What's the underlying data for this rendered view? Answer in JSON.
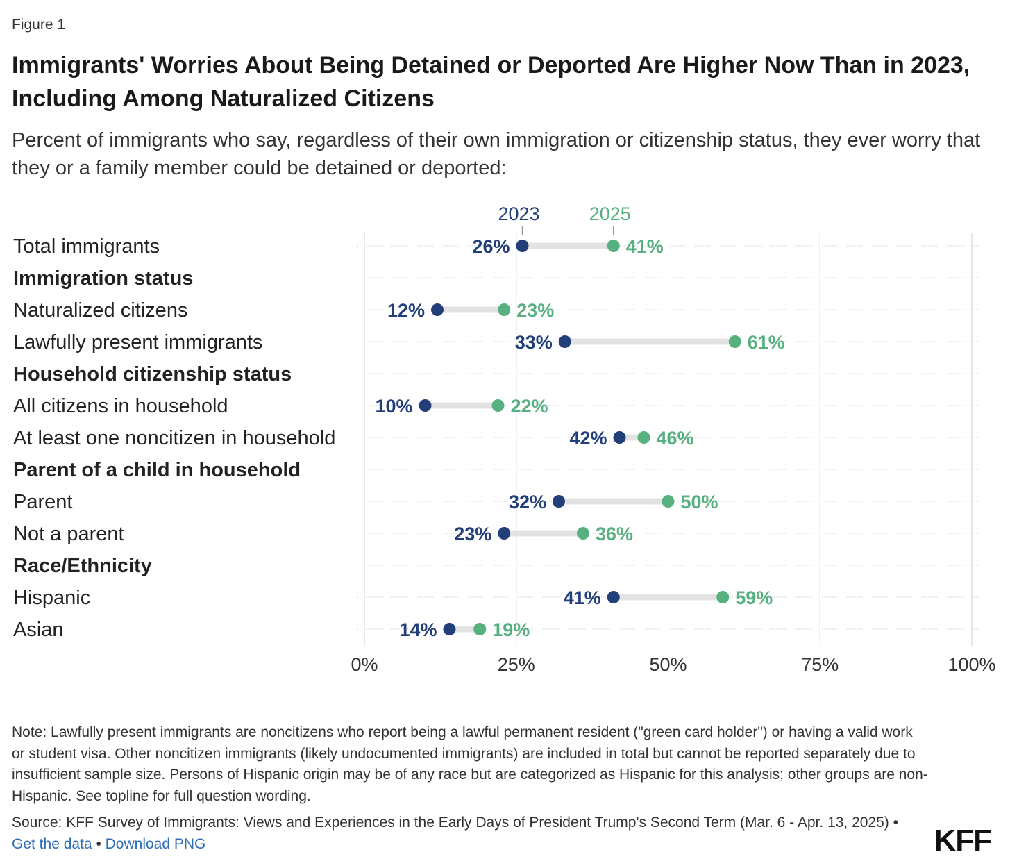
{
  "figure_label": "Figure 1",
  "title": "Immigrants' Worries About Being Detained or Deported Are Higher Now Than in 2023, Including Among Naturalized Citizens",
  "subtitle": "Percent of immigrants who say, regardless of their own immigration or citizenship status, they ever worry that they or a family member could be detained or deported:",
  "colors": {
    "series_2023": "#233f7a",
    "series_2025": "#56b07f",
    "connector": "#e3e3e3",
    "grid": "#d0d0d0"
  },
  "chart_data": {
    "type": "dumbbell",
    "xlim": [
      0,
      100
    ],
    "x_ticks": [
      "0%",
      "25%",
      "50%",
      "75%",
      "100%"
    ],
    "x_tick_values": [
      0,
      25,
      50,
      75,
      100
    ],
    "series": [
      {
        "name": "2023",
        "color": "#233f7a"
      },
      {
        "name": "2025",
        "color": "#56b07f"
      }
    ],
    "rows": [
      {
        "label": "Total immigrants",
        "header": false,
        "v2023": 26,
        "v2025": 41
      },
      {
        "label": "Immigration status",
        "header": true
      },
      {
        "label": "Naturalized citizens",
        "header": false,
        "v2023": 12,
        "v2025": 23
      },
      {
        "label": "Lawfully present immigrants",
        "header": false,
        "v2023": 33,
        "v2025": 61
      },
      {
        "label": "Household citizenship status",
        "header": true
      },
      {
        "label": "All citizens in household",
        "header": false,
        "v2023": 10,
        "v2025": 22
      },
      {
        "label": "At least one noncitizen in household",
        "header": false,
        "v2023": 42,
        "v2025": 46
      },
      {
        "label": "Parent of a child in household",
        "header": true
      },
      {
        "label": "Parent",
        "header": false,
        "v2023": 32,
        "v2025": 50
      },
      {
        "label": "Not a parent",
        "header": false,
        "v2023": 23,
        "v2025": 36
      },
      {
        "label": "Race/Ethnicity",
        "header": true
      },
      {
        "label": "Hispanic",
        "header": false,
        "v2023": 41,
        "v2025": 59
      },
      {
        "label": "Asian",
        "header": false,
        "v2023": 14,
        "v2025": 19
      }
    ]
  },
  "note": "Note: Lawfully present immigrants are noncitizens who report being a lawful permanent resident (\"green card holder\") or having a valid work or student visa. Other noncitizen immigrants (likely undocumented immigrants) are included in total but cannot be reported separately due to insufficient sample size. Persons of Hispanic origin may be of any race but are categorized as Hispanic for this analysis; other groups are non-Hispanic. See topline for full question wording.",
  "source": "Source: KFF Survey of Immigrants: Views and Experiences in the Early Days of President Trump's Second Term (Mar. 6 - Apr. 13, 2025)",
  "separator": "•",
  "links": {
    "get_data": "Get the data",
    "download_png": "Download PNG"
  },
  "logo": "KFF"
}
